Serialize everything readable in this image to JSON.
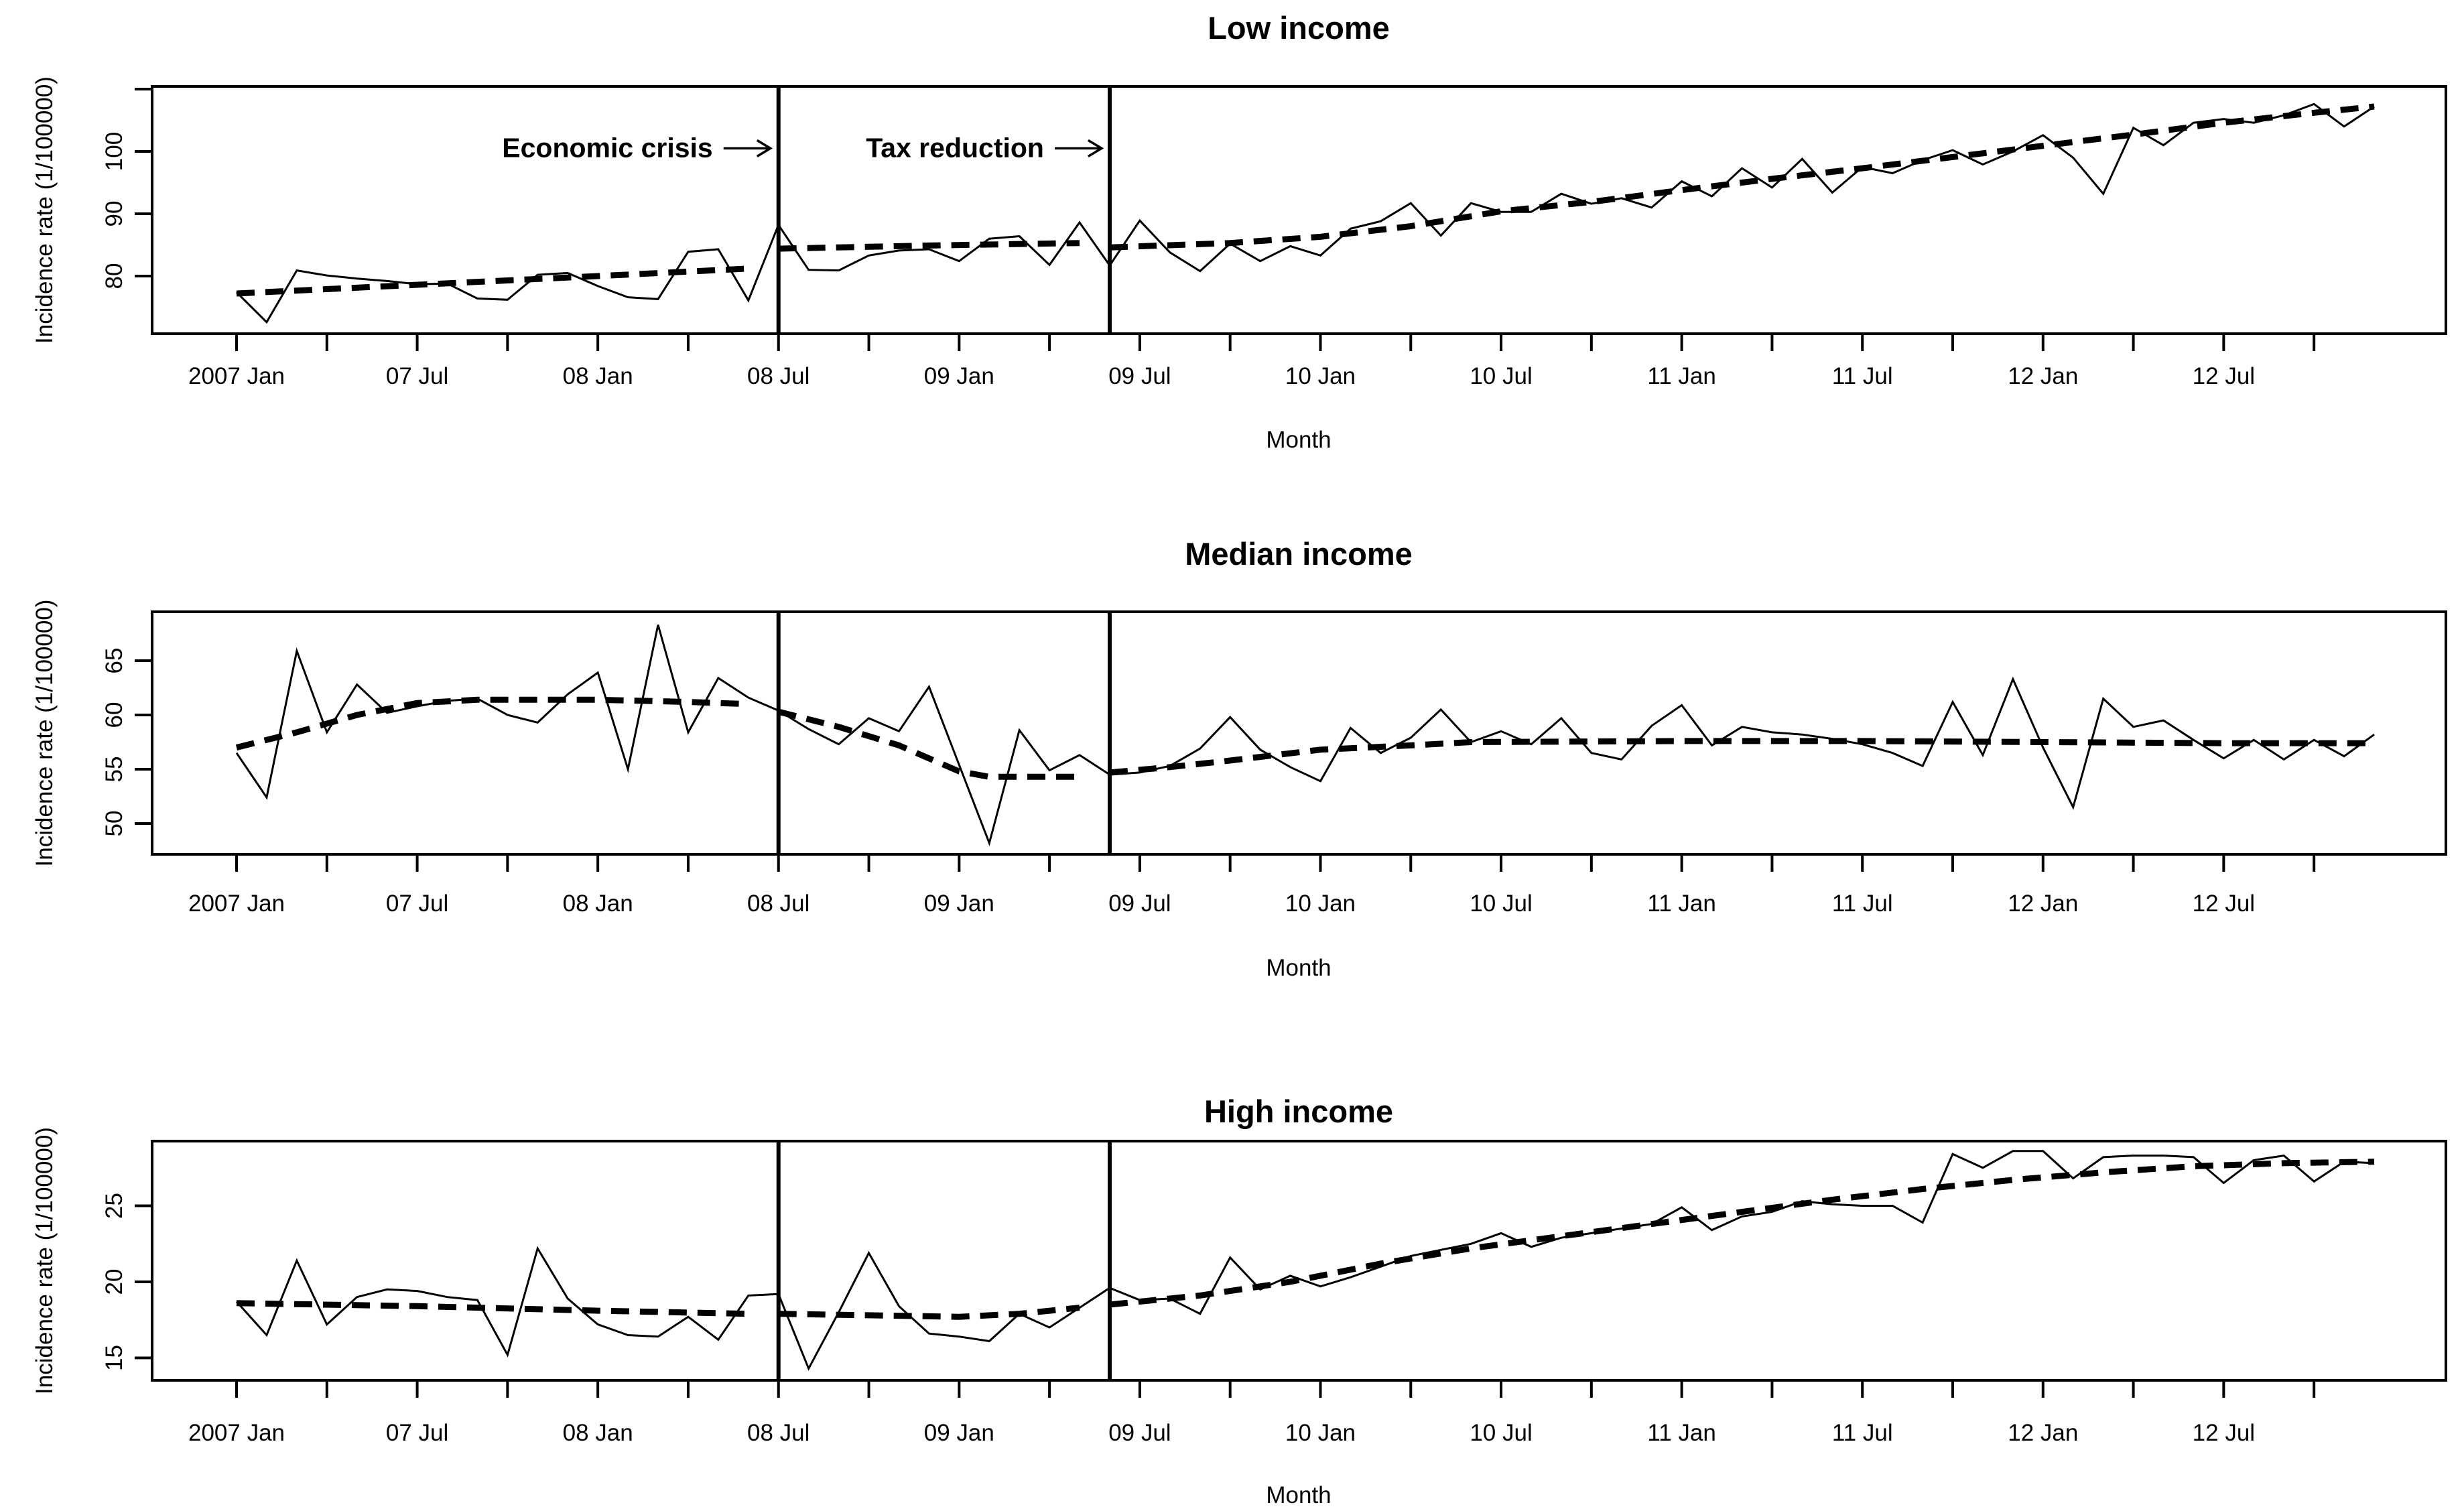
{
  "figure": {
    "background": "#ffffff",
    "line_color": "#000000",
    "xlabel": "Month",
    "ylabel": "Incidence rate (1/100000)",
    "x_domain": {
      "start": "2007 Jan",
      "end": "2012 Dec",
      "n_months": 72
    },
    "x_tick_labels": [
      "2007 Jan",
      "07 Jul",
      "08 Jan",
      "08 Jul",
      "09 Jan",
      "09 Jul",
      "10 Jan",
      "10 Jul",
      "11 Jan",
      "11 Jul",
      "12 Jan",
      "12 Jul"
    ],
    "x_label_every_months": 6,
    "x_minor_tick_every_months": 3
  },
  "chart_data": [
    {
      "type": "line",
      "title": "Low income",
      "xlabel": "Month",
      "ylabel": "Incidence rate (1/100000)",
      "ytick_labels": [
        "80",
        "90",
        "100"
      ],
      "yticks": [
        80,
        90,
        100
      ],
      "unlabeled_yticks": [
        110
      ],
      "ylim": [
        70.8,
        110.4
      ],
      "series": [
        {
          "name": "observed",
          "style": "solid",
          "values": [
            77.4,
            72.6,
            80.9,
            80.1,
            79.6,
            79.2,
            78.7,
            78.8,
            76.4,
            76.2,
            80.2,
            80.5,
            78.4,
            76.6,
            76.3,
            83.9,
            84.3,
            76.1,
            88.2,
            81.0,
            80.9,
            83.3,
            84.1,
            84.3,
            82.4,
            86.0,
            86.4,
            81.8,
            88.6,
            81.7,
            88.9,
            83.8,
            80.8,
            85.2,
            82.4,
            84.8,
            83.3,
            87.6,
            88.8,
            91.7,
            86.5,
            91.7,
            90.3,
            90.3,
            93.2,
            91.6,
            92.5,
            91.0,
            95.2,
            92.8,
            97.3,
            94.2,
            98.8,
            93.4,
            97.5,
            96.5,
            98.6,
            100.2,
            97.9,
            100.0,
            102.6,
            99.0,
            93.2,
            103.8,
            101.0,
            104.6,
            105.2,
            104.6,
            105.8,
            107.6,
            104.0,
            107.2
          ]
        },
        {
          "name": "fitted trend",
          "style": "dashed",
          "segments": [
            {
              "points": [
                [
                  0,
                  77.2
                ],
                [
                  6,
                  78.6
                ],
                [
                  12,
                  80.0
                ],
                [
                  17,
                  81.2
                ]
              ]
            },
            {
              "points": [
                [
                  18,
                  84.4
                ],
                [
                  23,
                  84.9
                ],
                [
                  28,
                  85.3
                ]
              ]
            },
            {
              "points": [
                [
                  29,
                  84.6
                ],
                [
                  33,
                  85.3
                ],
                [
                  36,
                  86.3
                ],
                [
                  39,
                  88.0
                ],
                [
                  42,
                  90.4
                ],
                [
                  45,
                  91.9
                ],
                [
                  48,
                  93.8
                ],
                [
                  51,
                  95.6
                ],
                [
                  54,
                  97.3
                ],
                [
                  57,
                  99.1
                ],
                [
                  60,
                  100.9
                ],
                [
                  63,
                  102.7
                ],
                [
                  66,
                  104.6
                ],
                [
                  69,
                  106.2
                ],
                [
                  71,
                  107.2
                ]
              ]
            }
          ]
        }
      ],
      "event_lines": [
        {
          "label": "Economic crisis",
          "date": "2008 Jul",
          "month_index": 18
        },
        {
          "label": "Tax reduction",
          "date": "2009 Jun",
          "month_index": 29
        }
      ],
      "annotations": [
        {
          "text": "Economic crisis",
          "points_to_month": 18,
          "y_value": 100.5
        },
        {
          "text": "Tax reduction",
          "points_to_month": 29,
          "y_value": 100.5
        }
      ]
    },
    {
      "type": "line",
      "title": "Median income",
      "xlabel": "Month",
      "ylabel": "Incidence rate (1/100000)",
      "ytick_labels": [
        "50",
        "55",
        "60",
        "65"
      ],
      "yticks": [
        50,
        55,
        60,
        65
      ],
      "unlabeled_yticks": [],
      "ylim": [
        47.2,
        69.5
      ],
      "series": [
        {
          "name": "observed",
          "style": "solid",
          "values": [
            56.5,
            52.4,
            65.9,
            58.4,
            62.8,
            60.2,
            60.8,
            61.3,
            61.5,
            60.0,
            59.3,
            61.9,
            63.9,
            55.0,
            68.3,
            58.4,
            63.4,
            61.6,
            60.4,
            58.7,
            57.3,
            59.7,
            58.5,
            62.6,
            55.4,
            48.2,
            58.6,
            54.9,
            56.3,
            54.5,
            54.7,
            55.3,
            56.9,
            59.8,
            56.8,
            55.2,
            53.9,
            58.8,
            56.5,
            57.9,
            60.5,
            57.5,
            58.5,
            57.3,
            59.7,
            56.5,
            55.9,
            59.0,
            60.9,
            57.2,
            58.9,
            58.4,
            58.2,
            57.8,
            57.3,
            56.5,
            55.3,
            61.2,
            56.3,
            63.3,
            57.0,
            51.5,
            61.5,
            58.9,
            59.5,
            57.7,
            56.0,
            57.7,
            55.9,
            57.7,
            56.2,
            58.2
          ]
        },
        {
          "name": "fitted trend",
          "style": "dashed",
          "segments": [
            {
              "points": [
                [
                  0,
                  57.0
                ],
                [
                  2,
                  58.4
                ],
                [
                  4,
                  60.0
                ],
                [
                  6,
                  61.1
                ],
                [
                  8,
                  61.4
                ],
                [
                  12,
                  61.4
                ],
                [
                  15,
                  61.2
                ],
                [
                  17,
                  61.0
                ]
              ]
            },
            {
              "points": [
                [
                  18,
                  60.3
                ],
                [
                  20,
                  58.9
                ],
                [
                  22,
                  57.2
                ],
                [
                  24,
                  54.8
                ],
                [
                  25,
                  54.3
                ],
                [
                  28,
                  54.3
                ]
              ]
            },
            {
              "points": [
                [
                  29,
                  54.7
                ],
                [
                  31,
                  55.2
                ],
                [
                  33,
                  55.8
                ],
                [
                  36,
                  56.8
                ],
                [
                  39,
                  57.2
                ],
                [
                  41,
                  57.5
                ],
                [
                  48,
                  57.6
                ],
                [
                  54,
                  57.6
                ],
                [
                  60,
                  57.5
                ],
                [
                  66,
                  57.4
                ],
                [
                  71,
                  57.4
                ]
              ]
            }
          ]
        }
      ],
      "event_lines": [
        {
          "label": "Economic crisis",
          "date": "2008 Jul",
          "month_index": 18
        },
        {
          "label": "Tax reduction",
          "date": "2009 Jun",
          "month_index": 29
        }
      ],
      "annotations": []
    },
    {
      "type": "line",
      "title": "High income",
      "xlabel": "Month",
      "ylabel": "Incidence rate (1/100000)",
      "ytick_labels": [
        "15",
        "20",
        "25"
      ],
      "yticks": [
        15,
        20,
        25
      ],
      "unlabeled_yticks": [],
      "ylim": [
        13.5,
        29.3
      ],
      "series": [
        {
          "name": "observed",
          "style": "solid",
          "values": [
            18.7,
            16.5,
            21.4,
            17.2,
            19.0,
            19.5,
            19.4,
            19.0,
            18.8,
            15.2,
            22.2,
            18.9,
            17.2,
            16.5,
            16.4,
            17.7,
            16.2,
            19.1,
            19.2,
            14.3,
            18.0,
            21.9,
            18.4,
            16.6,
            16.4,
            16.1,
            17.9,
            17.0,
            18.3,
            19.6,
            18.8,
            18.9,
            17.9,
            21.6,
            19.5,
            20.4,
            19.7,
            20.3,
            21.0,
            21.7,
            22.1,
            22.5,
            23.2,
            22.3,
            22.9,
            23.2,
            23.5,
            23.8,
            24.9,
            23.4,
            24.3,
            24.6,
            25.3,
            25.1,
            25.0,
            25.0,
            23.9,
            28.4,
            27.5,
            28.6,
            28.6,
            26.8,
            28.2,
            28.3,
            28.3,
            28.2,
            26.5,
            28.0,
            28.3,
            26.6,
            27.9,
            27.8
          ]
        },
        {
          "name": "fitted trend",
          "style": "dashed",
          "segments": [
            {
              "points": [
                [
                  0,
                  18.6
                ],
                [
                  6,
                  18.4
                ],
                [
                  12,
                  18.1
                ],
                [
                  17,
                  17.9
                ]
              ]
            },
            {
              "points": [
                [
                  18,
                  17.9
                ],
                [
                  21,
                  17.8
                ],
                [
                  24,
                  17.7
                ],
                [
                  26,
                  17.9
                ],
                [
                  28,
                  18.3
                ]
              ]
            },
            {
              "points": [
                [
                  29,
                  18.5
                ],
                [
                  32,
                  19.1
                ],
                [
                  35,
                  20.0
                ],
                [
                  38,
                  21.2
                ],
                [
                  41,
                  22.2
                ],
                [
                  44,
                  23.0
                ],
                [
                  47,
                  23.8
                ],
                [
                  50,
                  24.6
                ],
                [
                  53,
                  25.4
                ],
                [
                  56,
                  26.1
                ],
                [
                  59,
                  26.7
                ],
                [
                  62,
                  27.2
                ],
                [
                  65,
                  27.6
                ],
                [
                  68,
                  27.8
                ],
                [
                  71,
                  27.9
                ]
              ]
            }
          ]
        }
      ],
      "event_lines": [
        {
          "label": "Economic crisis",
          "date": "2008 Jul",
          "month_index": 18
        },
        {
          "label": "Tax reduction",
          "date": "2009 Jun",
          "month_index": 29
        }
      ],
      "annotations": []
    }
  ]
}
